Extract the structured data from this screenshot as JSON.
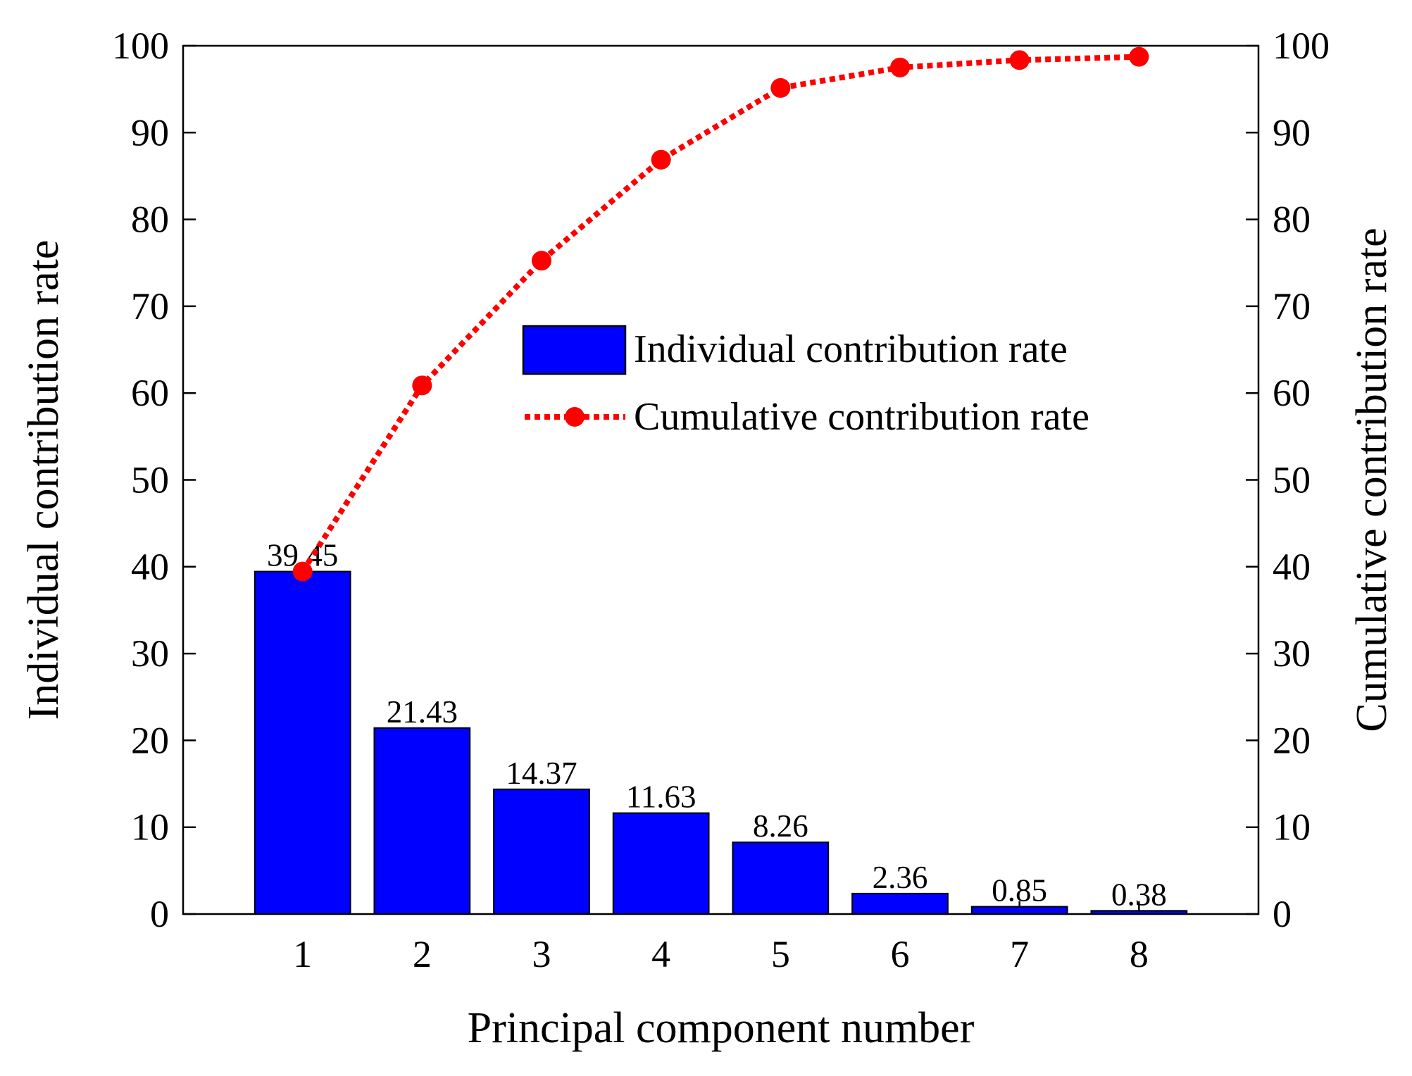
{
  "chart_data": {
    "type": "bar",
    "xlabel": "Principal component number",
    "ylabel_left": "Individual contribution rate",
    "ylabel_right": "Cumulative contribution rate",
    "categories": [
      "1",
      "2",
      "3",
      "4",
      "5",
      "6",
      "7",
      "8"
    ],
    "xlim": [
      0,
      9
    ],
    "ylim": [
      0,
      100
    ],
    "yticks": [
      "0",
      "10",
      "20",
      "30",
      "40",
      "50",
      "60",
      "70",
      "80",
      "90",
      "100"
    ],
    "grid": false,
    "legend_position": "center-right",
    "series": [
      {
        "name": "Individual contribution rate",
        "type": "bar",
        "axis": "left",
        "color": "#0000ff",
        "values": [
          39.45,
          21.43,
          14.37,
          11.63,
          8.26,
          2.36,
          0.85,
          0.38
        ],
        "labels": [
          "39.45",
          "21.43",
          "14.37",
          "11.63",
          "8.26",
          "2.36",
          "0.85",
          "0.38"
        ]
      },
      {
        "name": "Cumulative contribution rate",
        "type": "line",
        "axis": "right",
        "style": "dotted",
        "marker": "circle",
        "color": "#ff0000",
        "values": [
          39.45,
          60.88,
          75.25,
          86.88,
          95.14,
          97.5,
          98.35,
          98.73
        ]
      }
    ]
  }
}
